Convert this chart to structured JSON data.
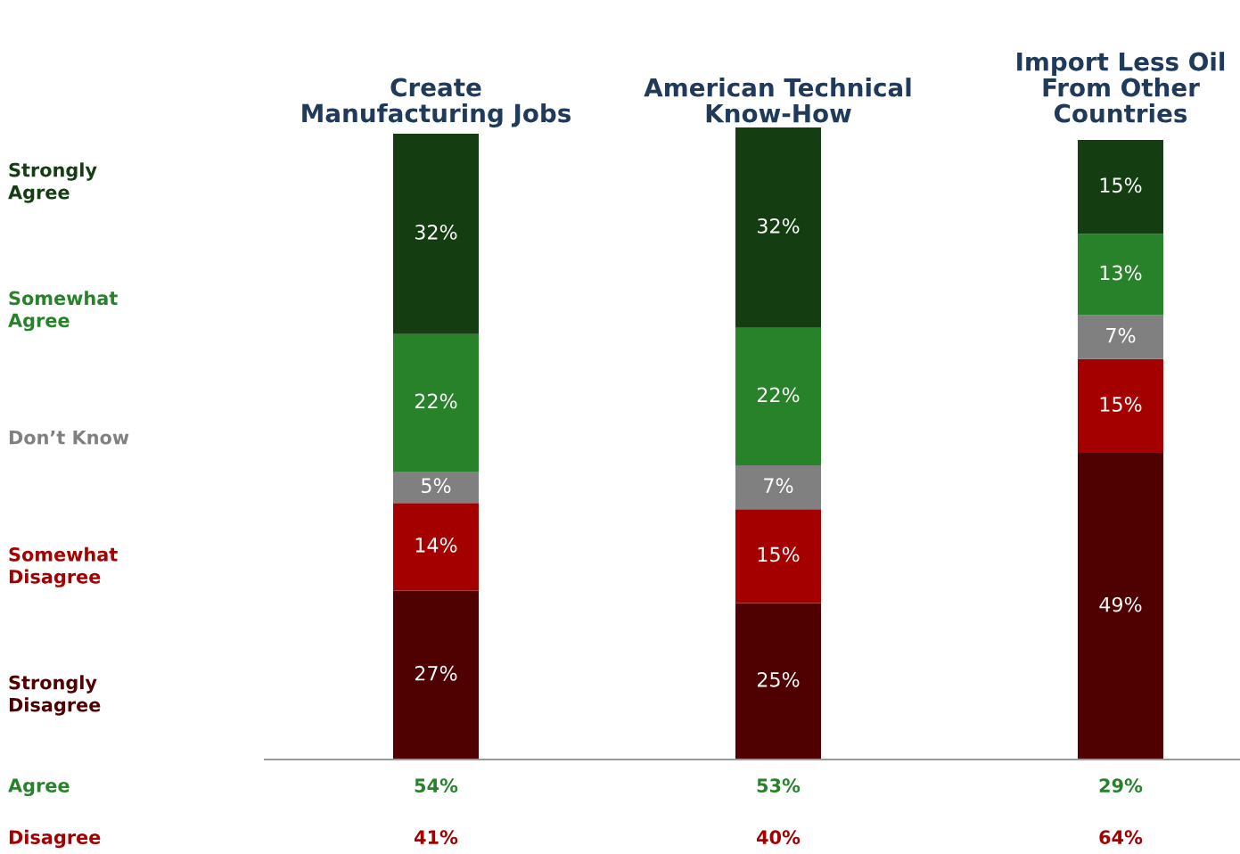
{
  "chart_data": {
    "type": "bar",
    "stacked": true,
    "legend": "left",
    "categories": [
      "Create\nManufacturing Jobs",
      "American Technical\nKnow-How",
      "Import Less Oil\nFrom Other\nCountries"
    ],
    "series": [
      {
        "name": "Strongly\nDisagree",
        "color": "#4f0000",
        "values": [
          27,
          25,
          49
        ],
        "value_labels": [
          "27%",
          "25%",
          "49%"
        ]
      },
      {
        "name": "Somewhat\nDisagree",
        "color": "#a50000",
        "values": [
          14,
          15,
          15
        ],
        "value_labels": [
          "14%",
          "15%",
          "15%"
        ]
      },
      {
        "name": "Don’t Know",
        "color": "#808080",
        "values": [
          5,
          7,
          7
        ],
        "value_labels": [
          "5%",
          "7%",
          "7%"
        ]
      },
      {
        "name": "Somewhat\nAgree",
        "color": "#27822a",
        "values": [
          22,
          22,
          13
        ],
        "value_labels": [
          "22%",
          "22%",
          "13%"
        ]
      },
      {
        "name": "Strongly\nAgree",
        "color": "#143d12",
        "values": [
          32,
          32,
          15
        ],
        "value_labels": [
          "32%",
          "32%",
          "15%"
        ]
      }
    ],
    "annotations": [
      "Agree",
      "54%",
      "53%",
      "29%",
      "Disagree",
      "41%",
      "40%",
      "64%"
    ]
  }
}
